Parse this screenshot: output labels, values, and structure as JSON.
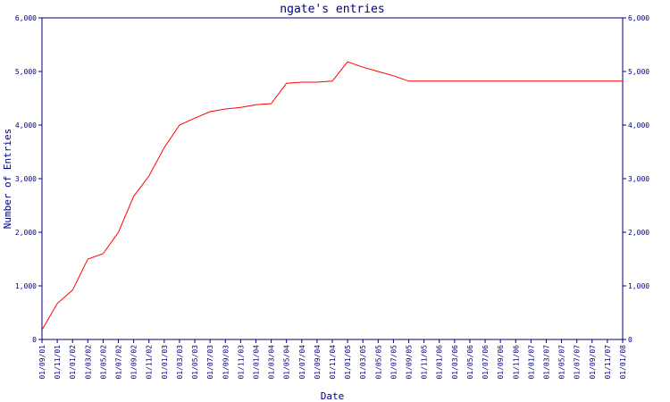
{
  "chart_data": {
    "type": "line",
    "title": "ngate's entries",
    "x_label": "Date",
    "y_label": "Number of Entries",
    "categories": [
      "01/09/01",
      "01/11/01",
      "01/01/02",
      "01/03/02",
      "01/05/02",
      "01/07/02",
      "01/09/02",
      "01/11/02",
      "01/01/03",
      "01/03/03",
      "01/05/03",
      "01/07/03",
      "01/09/03",
      "01/11/03",
      "01/01/04",
      "01/03/04",
      "01/05/04",
      "01/07/04",
      "01/09/04",
      "01/11/04",
      "01/01/05",
      "01/03/05",
      "01/05/05",
      "01/07/05",
      "01/09/05",
      "01/11/05",
      "01/01/06",
      "01/03/06",
      "01/05/06",
      "01/07/06",
      "01/09/06",
      "01/11/06",
      "01/01/07",
      "01/03/07",
      "01/05/07",
      "01/07/07",
      "01/09/07",
      "01/11/07",
      "01/01/08"
    ],
    "series": [
      {
        "color": "#ff0000",
        "values": [
          180,
          670,
          920,
          1500,
          1600,
          2000,
          2670,
          3050,
          3580,
          4000,
          4130,
          4250,
          4300,
          4330,
          4380,
          4400,
          4780,
          4800,
          4800,
          4820,
          5180,
          5080,
          5000,
          4920,
          4820,
          4820,
          4820,
          4820,
          4820,
          4820,
          4820,
          4820,
          4820,
          4820,
          4820,
          4820,
          4820,
          4820,
          4820
        ]
      }
    ],
    "ylim": [
      0,
      6000
    ],
    "yticks": [
      0,
      {
        "value": 1000,
        "label": "1,000"
      },
      {
        "value": 2000,
        "label": "2,000"
      },
      {
        "value": 3000,
        "label": "3,000"
      },
      {
        "value": 4000,
        "label": "4,000"
      },
      {
        "value": 5000,
        "label": "5,000"
      },
      {
        "value": 6000,
        "label": "6,000"
      }
    ],
    "axis_color": "#000080"
  }
}
